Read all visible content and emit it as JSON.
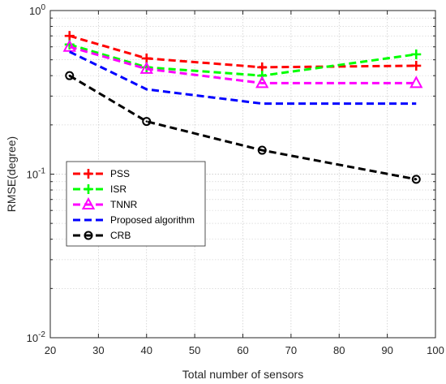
{
  "chart_data": {
    "type": "line",
    "xlabel": "Total number of sensors",
    "ylabel": "RMSE(degree)",
    "xlim": [
      20,
      100
    ],
    "ylim": [
      0.01,
      1
    ],
    "yscale": "log",
    "grid": true,
    "legend_position": "left",
    "x": [
      24,
      40,
      64,
      96
    ],
    "x_ticks": [
      20,
      30,
      40,
      50,
      60,
      70,
      80,
      90,
      100
    ],
    "x_tick_labels": [
      "20",
      "30",
      "40",
      "50",
      "60",
      "70",
      "80",
      "90",
      "100"
    ],
    "y_ticks": [
      0.01,
      0.1,
      1
    ],
    "y_tick_labels": [
      {
        "base": "10",
        "exp": "-2"
      },
      {
        "base": "10",
        "exp": "-1"
      },
      {
        "base": "10",
        "exp": "0"
      }
    ],
    "series": [
      {
        "name": "PSS",
        "color": "#ff0000",
        "marker": "plus",
        "values": [
          0.7,
          0.51,
          0.45,
          0.46
        ]
      },
      {
        "name": "ISR",
        "color": "#00ff00",
        "marker": "plus",
        "values": [
          0.62,
          0.45,
          0.4,
          0.54
        ]
      },
      {
        "name": "TNNR",
        "color": "#ff00ff",
        "marker": "triangle",
        "values": [
          0.6,
          0.44,
          0.36,
          0.36
        ]
      },
      {
        "name": "Proposed algorithm",
        "color": "#0000ff",
        "marker": "none",
        "values": [
          0.56,
          0.33,
          0.27,
          0.27
        ]
      },
      {
        "name": "CRB",
        "color": "#000000",
        "marker": "circle",
        "values": [
          0.4,
          0.21,
          0.14,
          0.093
        ]
      }
    ]
  }
}
